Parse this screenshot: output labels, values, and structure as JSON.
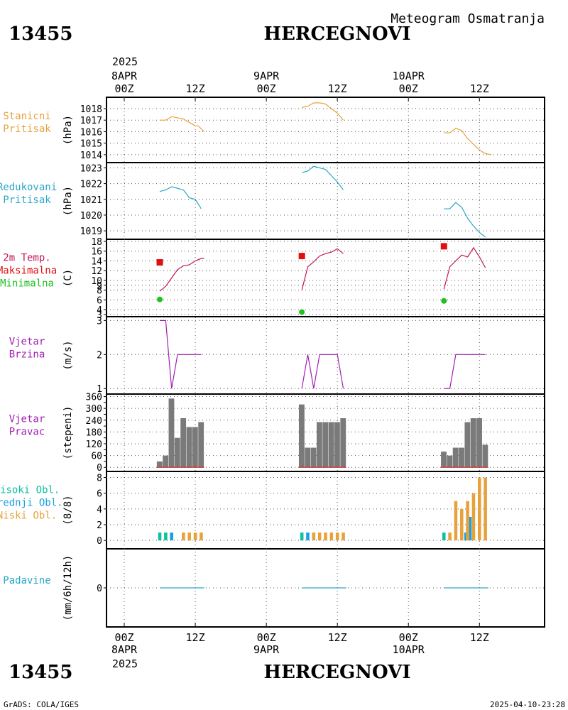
{
  "header": {
    "station_id": "13455",
    "station_name": "HERCEGNOVI",
    "chart_title": "Meteogram Osmatranja"
  },
  "footer": {
    "station_id": "13455",
    "station_name": "HERCEGNOVI",
    "credit": "GrADS: COLA/IGES",
    "timestamp": "2025-04-10-23:28"
  },
  "top_axis": {
    "year": "2025",
    "ticks": [
      {
        "hour": 0,
        "lines": [
          "8APR",
          "00Z"
        ]
      },
      {
        "hour": 12,
        "lines": [
          "12Z"
        ]
      },
      {
        "hour": 24,
        "lines": [
          "9APR",
          "00Z"
        ]
      },
      {
        "hour": 36,
        "lines": [
          "12Z"
        ]
      },
      {
        "hour": 48,
        "lines": [
          "10APR",
          "00Z"
        ]
      },
      {
        "hour": 60,
        "lines": [
          "12Z"
        ]
      }
    ]
  },
  "bottom_axis": {
    "year": "2025",
    "ticks": [
      {
        "hour": 0,
        "lines": [
          "00Z",
          "8APR"
        ]
      },
      {
        "hour": 12,
        "lines": [
          "12Z"
        ]
      },
      {
        "hour": 24,
        "lines": [
          "00Z",
          "9APR"
        ]
      },
      {
        "hour": 36,
        "lines": [
          "12Z"
        ]
      },
      {
        "hour": 48,
        "lines": [
          "00Z",
          "10APR"
        ]
      },
      {
        "hour": 60,
        "lines": [
          "12Z"
        ]
      }
    ]
  },
  "colors": {
    "pressure_station": "#e6a23c",
    "pressure_reduced": "#2aa8c8",
    "temperature": "#c0185c",
    "tmax": "#e01010",
    "tmin": "#20c020",
    "wind_speed": "#a020b0",
    "wind_dir_label": "#a020b0",
    "wind_dir_bar": "#7a7a7a",
    "cloud_high": "#10c0a0",
    "cloud_mid": "#1aa0e0",
    "cloud_low": "#e6a23c",
    "precip": "#2aa8c8",
    "grid": "#555555"
  },
  "chart_data": [
    {
      "id": "station-pressure",
      "type": "line",
      "label_lines": [
        "Stanicni",
        "Pritisak"
      ],
      "ylabel": "(hPa)",
      "ylim": [
        1013.5,
        1018.8
      ],
      "yticks": [
        1014,
        1015,
        1016,
        1017,
        1018
      ],
      "series": [
        {
          "color_key": "pressure_station",
          "segments": [
            [
              [
                6,
                1017
              ],
              [
                7,
                1017
              ],
              [
                8,
                1017.3
              ],
              [
                9,
                1017.2
              ],
              [
                10,
                1017.1
              ],
              [
                11,
                1016.8
              ],
              [
                12,
                1016.5
              ],
              [
                12.5,
                1016.5
              ],
              [
                13.5,
                1016
              ]
            ],
            [
              [
                30,
                1018.1
              ],
              [
                31,
                1018.2
              ],
              [
                32,
                1018.5
              ],
              [
                33,
                1018.5
              ],
              [
                34,
                1018.4
              ],
              [
                35,
                1018
              ],
              [
                36,
                1017.6
              ],
              [
                37,
                1017
              ]
            ],
            [
              [
                54,
                1015.9
              ],
              [
                55,
                1015.9
              ],
              [
                56,
                1016.3
              ],
              [
                57,
                1016.1
              ],
              [
                58,
                1015.4
              ],
              [
                59,
                1014.9
              ],
              [
                60,
                1014.4
              ],
              [
                61,
                1014.1
              ],
              [
                62,
                1014
              ]
            ]
          ]
        }
      ]
    },
    {
      "id": "reduced-pressure",
      "type": "line",
      "label_lines": [
        "Redukovani",
        "Pritisak"
      ],
      "ylabel": "(hPa)",
      "ylim": [
        1018.6,
        1023.2
      ],
      "yticks": [
        1019,
        1020,
        1021,
        1022,
        1023
      ],
      "series": [
        {
          "color_key": "pressure_reduced",
          "segments": [
            [
              [
                6,
                1021.5
              ],
              [
                7,
                1021.6
              ],
              [
                8,
                1021.8
              ],
              [
                9,
                1021.7
              ],
              [
                10,
                1021.6
              ],
              [
                11,
                1021.1
              ],
              [
                12,
                1021
              ],
              [
                13,
                1020.4
              ]
            ],
            [
              [
                30,
                1022.7
              ],
              [
                31,
                1022.8
              ],
              [
                32,
                1023.1
              ],
              [
                33,
                1023
              ],
              [
                34,
                1022.9
              ],
              [
                35,
                1022.5
              ],
              [
                36,
                1022.1
              ],
              [
                37,
                1021.6
              ]
            ],
            [
              [
                54,
                1020.4
              ],
              [
                55,
                1020.4
              ],
              [
                56,
                1020.8
              ],
              [
                57,
                1020.5
              ],
              [
                58,
                1019.8
              ],
              [
                59,
                1019.3
              ],
              [
                60,
                1018.9
              ],
              [
                61,
                1018.6
              ]
            ]
          ]
        }
      ]
    },
    {
      "id": "temperature",
      "type": "line",
      "label_lines": [
        "2m Temp.",
        "Maksimalna",
        "Minimalna"
      ],
      "label_color_keys": [
        "temperature",
        "tmax",
        "tmin"
      ],
      "ylabel": "(C)",
      "ylim": [
        3,
        18
      ],
      "yticks": [
        3,
        4,
        6,
        8,
        9,
        10,
        12,
        14,
        16,
        18
      ],
      "series": [
        {
          "color_key": "temperature",
          "segments": [
            [
              [
                6,
                7.8
              ],
              [
                7,
                8.8
              ],
              [
                8,
                10.5
              ],
              [
                9,
                12.2
              ],
              [
                10,
                13
              ],
              [
                11,
                13.2
              ],
              [
                12,
                14
              ],
              [
                13,
                14.5
              ],
              [
                13.5,
                14.5
              ]
            ],
            [
              [
                30,
                8
              ],
              [
                31,
                12.8
              ],
              [
                32,
                13.8
              ],
              [
                33,
                15
              ],
              [
                34,
                15.5
              ],
              [
                35,
                15.8
              ],
              [
                36,
                16.5
              ],
              [
                37,
                15.5
              ]
            ],
            [
              [
                54,
                8.2
              ],
              [
                55,
                12.8
              ],
              [
                56,
                14
              ],
              [
                57,
                15.2
              ],
              [
                58,
                14.8
              ],
              [
                59,
                16.7
              ],
              [
                60,
                14.8
              ],
              [
                61,
                12.6
              ]
            ]
          ]
        }
      ],
      "tmax": [
        [
          6,
          13.7
        ],
        [
          30,
          15
        ],
        [
          54,
          17
        ]
      ],
      "tmin": [
        [
          6,
          6.1
        ],
        [
          30,
          3.5
        ],
        [
          54,
          5.8
        ]
      ]
    },
    {
      "id": "wind-speed",
      "type": "line",
      "label_lines": [
        "Vjetar",
        "Brzina"
      ],
      "ylabel": "(m/s)",
      "ylim": [
        0.9,
        3.05
      ],
      "yticks": [
        1,
        2,
        3
      ],
      "series": [
        {
          "color_key": "wind_speed",
          "segments": [
            [
              [
                6,
                3
              ],
              [
                7,
                3
              ],
              [
                8,
                1
              ],
              [
                9,
                2
              ],
              [
                10,
                2
              ],
              [
                11,
                2
              ],
              [
                12,
                2
              ],
              [
                13,
                2
              ]
            ],
            [
              [
                30,
                1
              ],
              [
                31,
                2
              ],
              [
                32,
                1
              ],
              [
                33,
                2
              ],
              [
                34,
                2
              ],
              [
                35,
                2
              ],
              [
                36,
                2
              ],
              [
                37,
                1
              ]
            ],
            [
              [
                54,
                1
              ],
              [
                55,
                1
              ],
              [
                56,
                2
              ],
              [
                57,
                2
              ],
              [
                58,
                2
              ],
              [
                59,
                2
              ],
              [
                60,
                2
              ],
              [
                61,
                2
              ]
            ]
          ]
        }
      ]
    },
    {
      "id": "wind-direction",
      "type": "bar",
      "label_lines": [
        "Vjetar",
        "Pravac"
      ],
      "ylabel": "(stepeni)",
      "ylim": [
        -10,
        362
      ],
      "yticks": [
        0,
        30,
        60,
        90,
        120,
        150,
        180,
        210,
        240,
        270,
        300,
        330,
        360
      ],
      "ytick_labels": [
        0,
        60,
        120,
        180,
        240,
        300,
        360
      ],
      "bars": [
        [
          6,
          30
        ],
        [
          7,
          60
        ],
        [
          8,
          350
        ],
        [
          9,
          150
        ],
        [
          10,
          250
        ],
        [
          11,
          205
        ],
        [
          12,
          205
        ],
        [
          13,
          230
        ],
        [
          30,
          320
        ],
        [
          31,
          100
        ],
        [
          32,
          100
        ],
        [
          33,
          230
        ],
        [
          34,
          230
        ],
        [
          35,
          230
        ],
        [
          36,
          230
        ],
        [
          37,
          250
        ],
        [
          54,
          80
        ],
        [
          55,
          60
        ],
        [
          56,
          100
        ],
        [
          57,
          100
        ],
        [
          58,
          230
        ],
        [
          59,
          250
        ],
        [
          60,
          250
        ],
        [
          61,
          115
        ]
      ]
    },
    {
      "id": "cloud-cover",
      "type": "bar",
      "label_lines": [
        "Visoki Obl.",
        "Srednji Obl.",
        "Niski Obl."
      ],
      "label_color_keys": [
        "cloud_high",
        "cloud_mid",
        "cloud_low"
      ],
      "ylabel": "(8/8)",
      "ylim": [
        -0.8,
        8.5
      ],
      "yticks": [
        0,
        2,
        4,
        6,
        8
      ],
      "series": [
        {
          "name": "Visoki Obl.",
          "color_key": "cloud_high",
          "bars": [
            [
              6,
              1
            ],
            [
              7,
              1
            ],
            [
              30,
              1
            ],
            [
              54,
              1
            ]
          ]
        },
        {
          "name": "Srednji Obl.",
          "color_key": "cloud_mid",
          "bars": [
            [
              8,
              1
            ],
            [
              31,
              1
            ],
            [
              57.7,
              1
            ],
            [
              58.4,
              3
            ]
          ]
        },
        {
          "name": "Niski Obl.",
          "color_key": "cloud_low",
          "bars": [
            [
              10,
              1
            ],
            [
              11,
              1
            ],
            [
              12,
              1
            ],
            [
              13,
              1
            ],
            [
              32,
              1
            ],
            [
              33,
              1
            ],
            [
              34,
              1
            ],
            [
              35,
              1
            ],
            [
              36,
              1
            ],
            [
              37,
              1
            ],
            [
              55,
              1
            ],
            [
              56,
              5
            ],
            [
              57,
              4
            ],
            [
              58,
              5
            ],
            [
              59,
              6
            ],
            [
              60,
              8
            ],
            [
              61,
              8
            ]
          ]
        }
      ]
    },
    {
      "id": "precipitation",
      "type": "line",
      "label_lines": [
        "Padavine"
      ],
      "ylabel": "(mm/6h/12h)",
      "ylim": [
        -1,
        1
      ],
      "yticks": [
        0
      ],
      "series": [
        {
          "color_key": "precip",
          "segments": [
            [
              [
                6,
                0
              ],
              [
                13.5,
                0
              ]
            ],
            [
              [
                30,
                0
              ],
              [
                37.5,
                0
              ]
            ],
            [
              [
                54,
                0
              ],
              [
                61.5,
                0
              ]
            ]
          ]
        }
      ]
    }
  ]
}
